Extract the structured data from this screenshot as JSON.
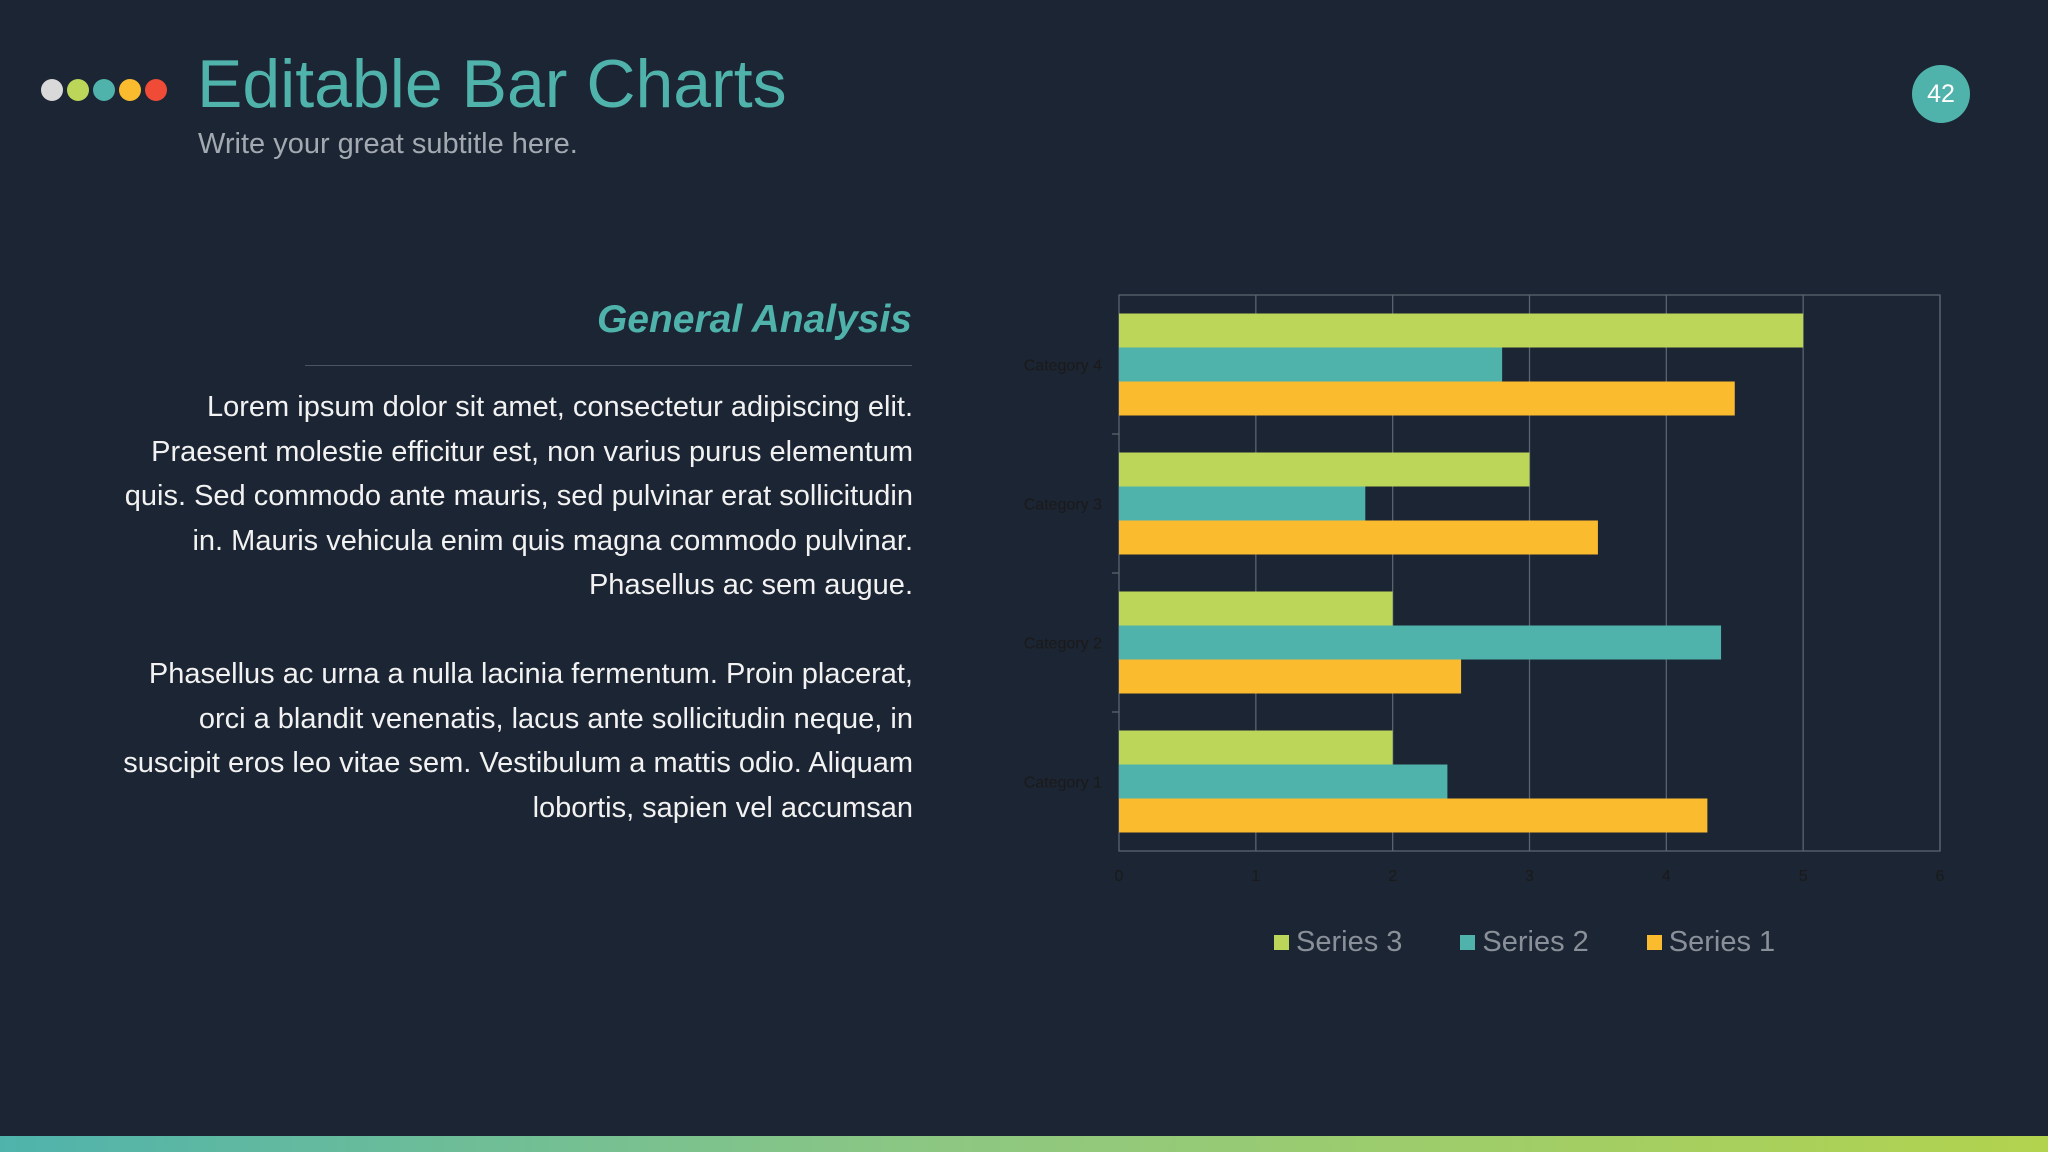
{
  "header": {
    "title": "Editable Bar Charts",
    "subtitle": "Write your great subtitle here.",
    "page_number": "42",
    "dot_colors": [
      "#d9d9d9",
      "#bcd65a",
      "#4fb3ac",
      "#fbbb2f",
      "#ef4b37"
    ]
  },
  "content": {
    "heading": "General Analysis",
    "paragraphs": [
      "Lorem ipsum dolor sit amet, consectetur adipiscing elit. Praesent molestie efficitur est, non varius purus elementum quis. Sed commodo ante mauris, sed pulvinar erat sollicitudin in. Mauris vehicula enim quis magna commodo pulvinar. Phasellus ac sem augue.",
      "Phasellus ac urna a nulla lacinia fermentum. Proin placerat, orci a blandit venenatis, lacus ante sollicitudin neque, in suscipit eros leo vitae sem. Vestibulum a mattis odio. Aliquam lobortis, sapien vel accumsan"
    ]
  },
  "colors": {
    "accent": "#4fb3ac",
    "background": "#1c2533"
  },
  "chart_data": {
    "type": "bar",
    "orientation": "horizontal",
    "categories": [
      "Category 1",
      "Category 2",
      "Category 3",
      "Category 4"
    ],
    "series": [
      {
        "name": "Series 1",
        "color": "#fbbb2f",
        "values": [
          4.3,
          2.5,
          3.5,
          4.5
        ]
      },
      {
        "name": "Series 2",
        "color": "#4fb3ac",
        "values": [
          2.4,
          4.4,
          1.8,
          2.8
        ]
      },
      {
        "name": "Series 3",
        "color": "#bcd65a",
        "values": [
          2,
          2,
          3,
          5
        ]
      }
    ],
    "xlim": [
      0,
      6
    ],
    "x_ticks": [
      0,
      1,
      2,
      3,
      4,
      5,
      6
    ],
    "grid": true,
    "legend_position": "bottom",
    "legend_order": [
      "Series 3",
      "Series 2",
      "Series 1"
    ]
  }
}
